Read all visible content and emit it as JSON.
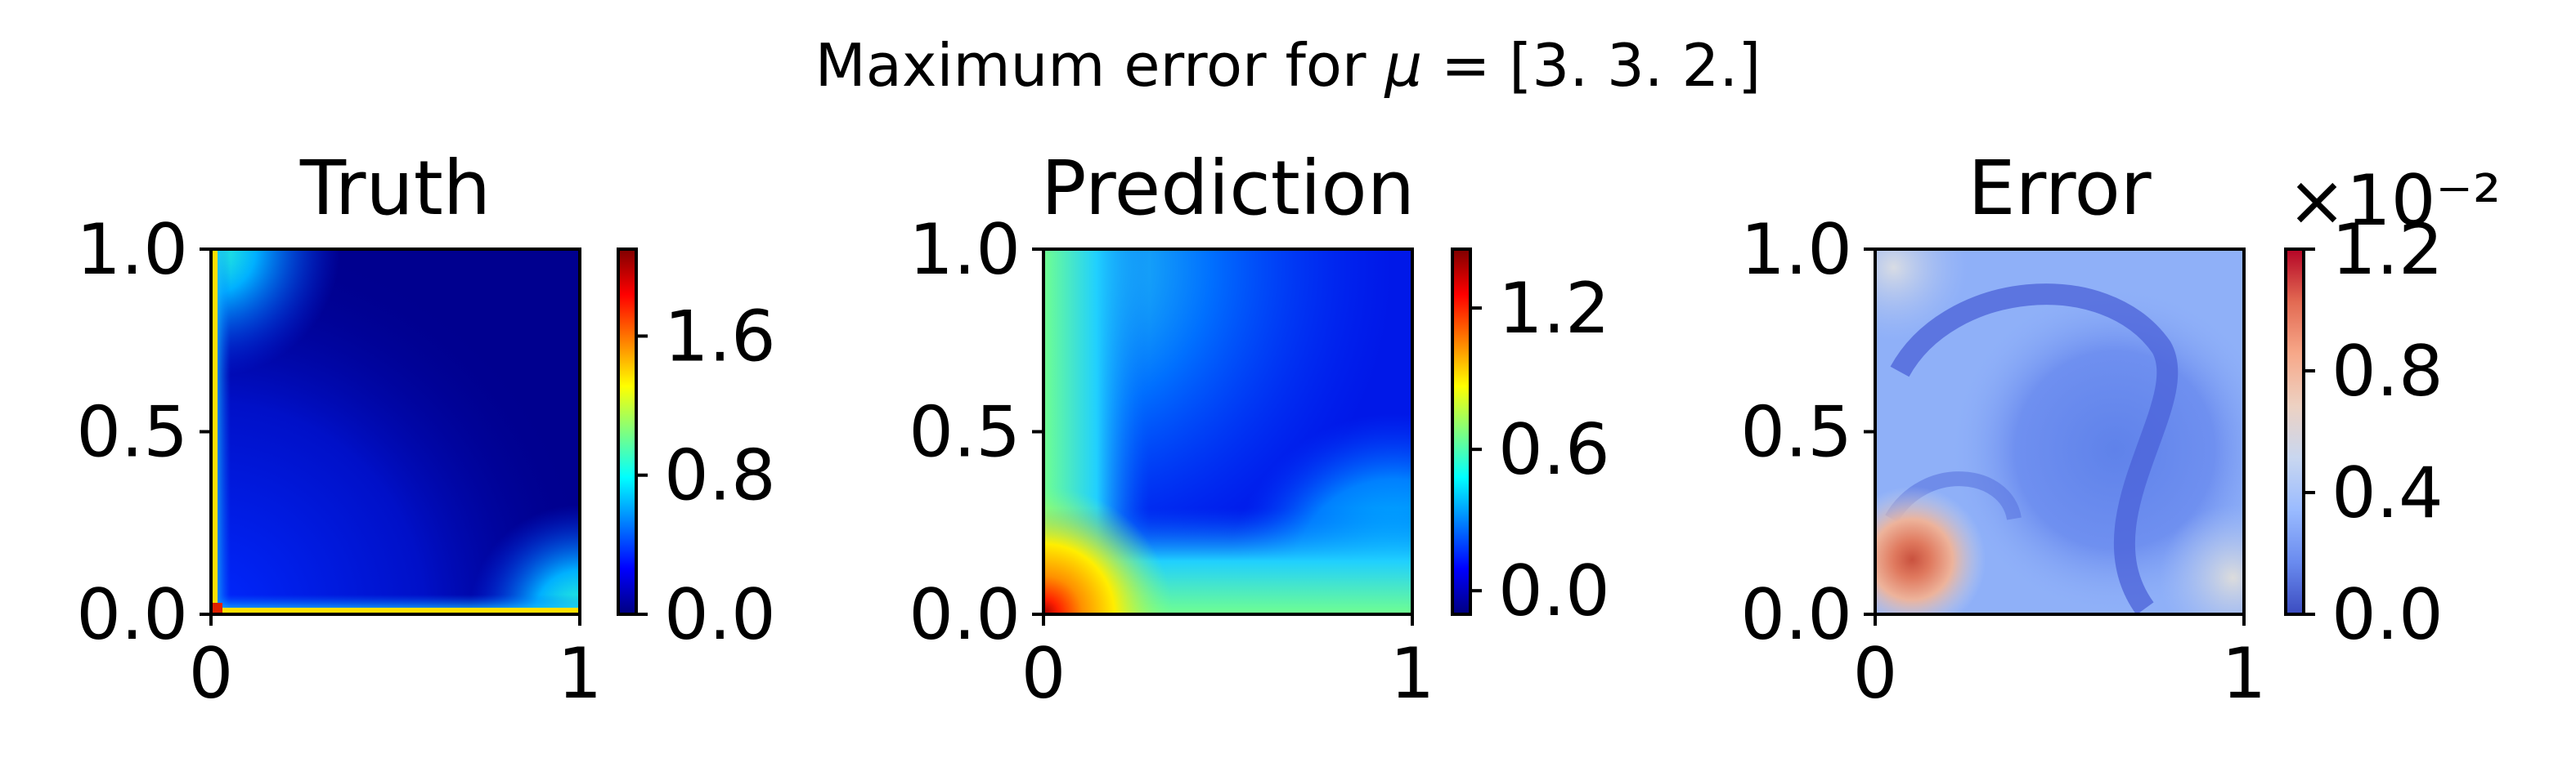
{
  "suptitle": {
    "prefix": "Maximum error for ",
    "symbol": "μ",
    "suffix": " = [3. 3. 2.]"
  },
  "chart_data": [
    {
      "type": "heatmap",
      "title": "Truth",
      "colormap": "jet",
      "xlim": [
        0,
        1
      ],
      "ylim": [
        0,
        1
      ],
      "xticks": [
        "0",
        "1"
      ],
      "yticks": [
        "0.0",
        "0.5",
        "1.0"
      ],
      "colorbar": {
        "range": [
          0.0,
          2.1
        ],
        "ticks": [
          0.0,
          0.8,
          1.6
        ],
        "ticklabels": [
          "0.0",
          "0.8",
          "1.6"
        ],
        "exponent": ""
      },
      "description": "low values (dark blue) over most of the domain, high values along x=0 and y=0 edges, peaking near the origin",
      "max": 2.1
    },
    {
      "type": "heatmap",
      "title": "Prediction",
      "colormap": "jet",
      "xlim": [
        0,
        1
      ],
      "ylim": [
        0,
        1
      ],
      "xticks": [
        "0",
        "1"
      ],
      "yticks": [
        "0.0",
        "0.5",
        "1.0"
      ],
      "colorbar": {
        "range": [
          -0.1,
          1.45
        ],
        "ticks": [
          0.0,
          0.6,
          1.2
        ],
        "ticklabels": [
          "0.0",
          "0.6",
          "1.2"
        ],
        "exponent": ""
      },
      "description": "smooth field, high near origin, moderate along left and bottom edges, low in upper right",
      "max": 1.45
    },
    {
      "type": "heatmap",
      "title": "Error",
      "colormap": "coolwarm",
      "xlim": [
        0,
        1
      ],
      "ylim": [
        0,
        1
      ],
      "xticks": [
        "0",
        "1"
      ],
      "yticks": [
        "0.0",
        "0.5",
        "1.0"
      ],
      "colorbar": {
        "range": [
          0.0,
          1.2
        ],
        "ticks": [
          0.0,
          0.4,
          0.8,
          1.2
        ],
        "ticklabels": [
          "0.0",
          "0.4",
          "0.8",
          "1.2"
        ],
        "exponent": "×10⁻²"
      },
      "description": "peak error (red) near x≈0.1, y≈0.15; mostly blue elsewhere with darker blue bands",
      "max": 1.2
    }
  ]
}
